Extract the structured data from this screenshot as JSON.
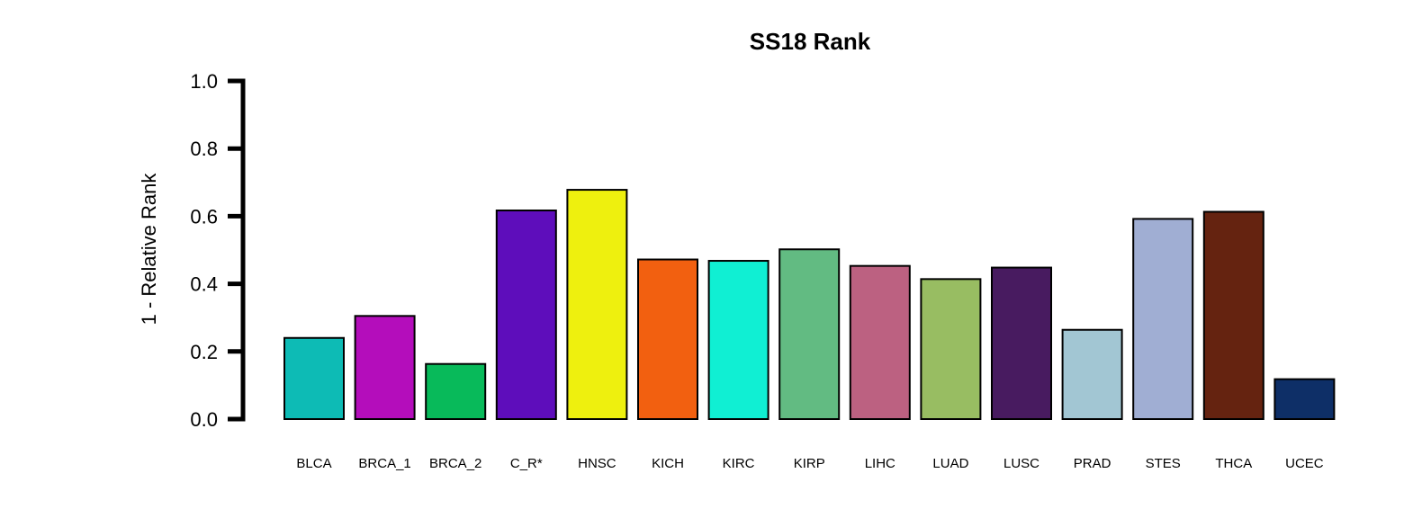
{
  "chart_data": {
    "type": "bar",
    "title": "SS18 Rank",
    "ylabel": "1 - Relative Rank",
    "xlabel": "",
    "ylim": [
      0,
      1
    ],
    "yticks": [
      "0.0",
      "0.2",
      "0.4",
      "0.6",
      "0.8",
      "1.0"
    ],
    "grid": false,
    "legend": "none",
    "categories": [
      "BLCA",
      "BRCA_1",
      "BRCA_2",
      "C_R*",
      "HNSC",
      "KICH",
      "KIRC",
      "KIRP",
      "LIHC",
      "LUAD",
      "LUSC",
      "PRAD",
      "STES",
      "THCA",
      "UCEC"
    ],
    "values": [
      0.24,
      0.305,
      0.163,
      0.617,
      0.678,
      0.472,
      0.468,
      0.502,
      0.453,
      0.414,
      0.448,
      0.264,
      0.592,
      0.613,
      0.118
    ],
    "colors": [
      "#0DBBB5",
      "#B40DBB",
      "#08BA5A",
      "#5E0DBB",
      "#EEF00E",
      "#F26010",
      "#10EFD3",
      "#62BB82",
      "#BC6181",
      "#98BD62",
      "#481B60",
      "#A2C6D3",
      "#A0AED3",
      "#652310",
      "#0E2F67"
    ]
  }
}
